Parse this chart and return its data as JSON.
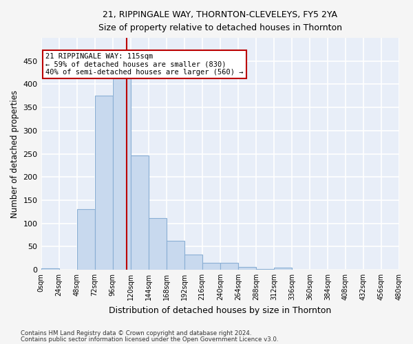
{
  "title1": "21, RIPPINGALE WAY, THORNTON-CLEVELEYS, FY5 2YA",
  "title2": "Size of property relative to detached houses in Thornton",
  "xlabel": "Distribution of detached houses by size in Thornton",
  "ylabel": "Number of detached properties",
  "bar_color": "#c8d9ee",
  "bar_edge_color": "#8aafd4",
  "background_color": "#e8eef8",
  "grid_color": "#ffffff",
  "bin_edges": [
    0,
    24,
    48,
    72,
    96,
    120,
    144,
    168,
    192,
    216,
    240,
    264,
    288,
    312,
    336,
    360,
    384,
    408,
    432,
    456,
    480
  ],
  "bar_values": [
    3,
    0,
    130,
    375,
    415,
    246,
    111,
    63,
    33,
    15,
    15,
    6,
    2,
    5,
    0,
    0,
    0,
    0,
    0,
    0
  ],
  "property_size": 115,
  "vline_color": "#bb0000",
  "annotation_text": "21 RIPPINGALE WAY: 115sqm\n← 59% of detached houses are smaller (830)\n40% of semi-detached houses are larger (560) →",
  "annotation_box_color": "#ffffff",
  "annotation_box_edge_color": "#bb0000",
  "ylim": [
    0,
    500
  ],
  "yticks": [
    0,
    50,
    100,
    150,
    200,
    250,
    300,
    350,
    400,
    450
  ],
  "footnote1": "Contains HM Land Registry data © Crown copyright and database right 2024.",
  "footnote2": "Contains public sector information licensed under the Open Government Licence v3.0."
}
